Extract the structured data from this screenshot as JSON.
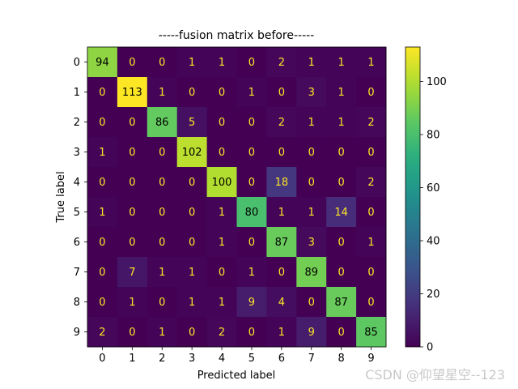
{
  "chart_data": {
    "type": "heatmap",
    "title": "-----fusion matrix before-----",
    "xlabel": "Predicted label",
    "ylabel": "True label",
    "x_ticks": [
      "0",
      "1",
      "2",
      "3",
      "4",
      "5",
      "6",
      "7",
      "8",
      "9"
    ],
    "y_ticks": [
      "0",
      "1",
      "2",
      "3",
      "4",
      "5",
      "6",
      "7",
      "8",
      "9"
    ],
    "matrix": [
      [
        94,
        0,
        0,
        1,
        1,
        0,
        2,
        1,
        1,
        1
      ],
      [
        0,
        113,
        1,
        0,
        0,
        1,
        0,
        3,
        1,
        0
      ],
      [
        0,
        0,
        86,
        5,
        0,
        0,
        2,
        1,
        1,
        2
      ],
      [
        1,
        0,
        0,
        102,
        0,
        0,
        0,
        0,
        0,
        0
      ],
      [
        0,
        0,
        0,
        0,
        100,
        0,
        18,
        0,
        0,
        2
      ],
      [
        1,
        0,
        0,
        0,
        1,
        80,
        1,
        1,
        14,
        0
      ],
      [
        0,
        0,
        0,
        0,
        1,
        0,
        87,
        3,
        0,
        1
      ],
      [
        0,
        7,
        1,
        1,
        0,
        1,
        0,
        89,
        0,
        0
      ],
      [
        0,
        1,
        0,
        1,
        1,
        9,
        4,
        0,
        87,
        0
      ],
      [
        2,
        0,
        1,
        0,
        2,
        0,
        1,
        9,
        0,
        85
      ]
    ],
    "colormap": "viridis",
    "vmin": 0,
    "vmax": 113,
    "colorbar_ticks": [
      0,
      20,
      40,
      60,
      80,
      100
    ],
    "grid": false
  },
  "watermark": "CSDN @仰望星空--123"
}
